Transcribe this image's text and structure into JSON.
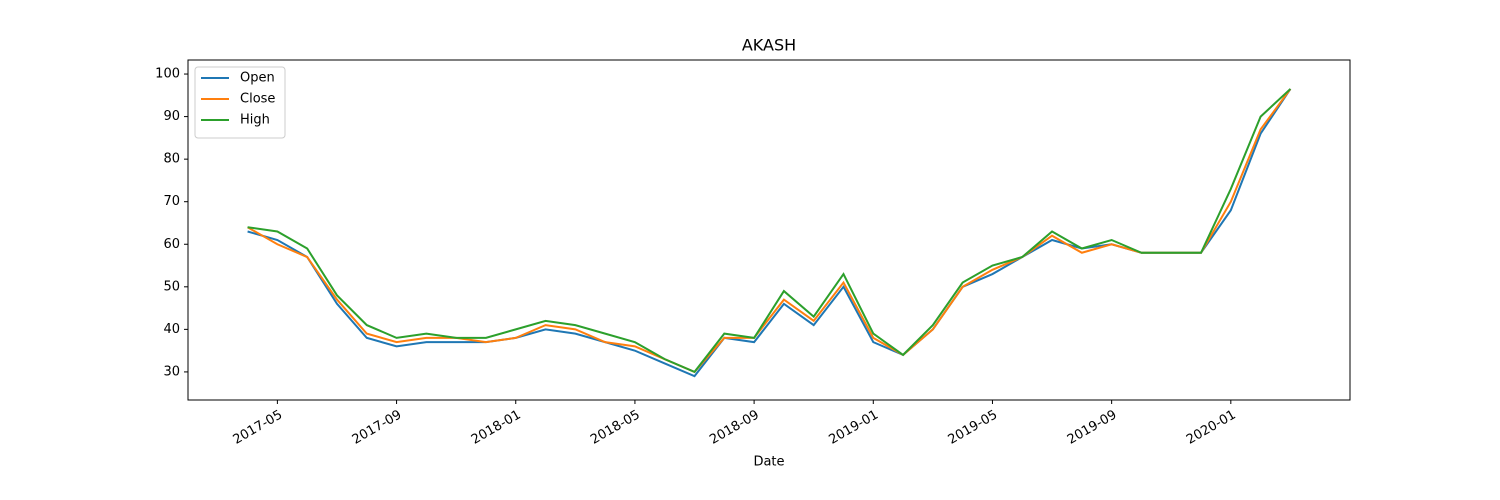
{
  "chart_data": {
    "type": "line",
    "title": "AKASH",
    "xlabel": "Date",
    "x": [
      "2017-04",
      "2017-05",
      "2017-06",
      "2017-07",
      "2017-08",
      "2017-09",
      "2017-10",
      "2017-11",
      "2017-12",
      "2018-01",
      "2018-02",
      "2018-03",
      "2018-04",
      "2018-05",
      "2018-06",
      "2018-07",
      "2018-08",
      "2018-09",
      "2018-10",
      "2018-11",
      "2018-12",
      "2019-01",
      "2019-02",
      "2019-03",
      "2019-04",
      "2019-05",
      "2019-06",
      "2019-07",
      "2019-08",
      "2019-09",
      "2019-10",
      "2019-11",
      "2019-12",
      "2020-01",
      "2020-02",
      "2020-03"
    ],
    "series": [
      {
        "name": "Open",
        "color": "#1f77b4",
        "values": [
          63,
          61,
          57,
          46,
          38,
          36,
          37,
          37,
          37,
          38,
          40,
          39,
          37,
          35,
          32,
          29,
          38,
          37,
          46,
          41,
          50,
          37,
          34,
          40,
          50,
          53,
          57,
          61,
          59,
          60,
          58,
          58,
          58,
          68,
          86,
          96.5
        ]
      },
      {
        "name": "Close",
        "color": "#ff7f0e",
        "values": [
          64,
          60,
          57,
          47,
          39,
          37,
          38,
          38,
          37,
          38,
          41,
          40,
          37,
          36,
          33,
          30,
          38,
          38,
          47,
          42,
          51,
          38,
          34,
          40,
          50,
          54,
          57,
          62,
          58,
          60,
          58,
          58,
          58,
          70,
          87,
          96.5
        ]
      },
      {
        "name": "High",
        "color": "#2ca02c",
        "values": [
          64,
          63,
          59,
          48,
          41,
          38,
          39,
          38,
          38,
          40,
          42,
          41,
          39,
          37,
          33,
          30,
          39,
          38,
          49,
          43,
          53,
          39,
          34,
          41,
          51,
          55,
          57,
          63,
          59,
          61,
          58,
          58,
          58,
          73,
          90,
          96.5
        ]
      }
    ],
    "xlim": [
      "2017-02",
      "2020-05"
    ],
    "xticks": [
      "2017-05",
      "2017-09",
      "2018-01",
      "2018-05",
      "2018-09",
      "2019-01",
      "2019-05",
      "2019-09",
      "2020-01"
    ],
    "ylim": [
      23.4,
      103.3
    ],
    "yticks": [
      30,
      40,
      50,
      60,
      70,
      80,
      90,
      100
    ],
    "legend": "upper left"
  }
}
